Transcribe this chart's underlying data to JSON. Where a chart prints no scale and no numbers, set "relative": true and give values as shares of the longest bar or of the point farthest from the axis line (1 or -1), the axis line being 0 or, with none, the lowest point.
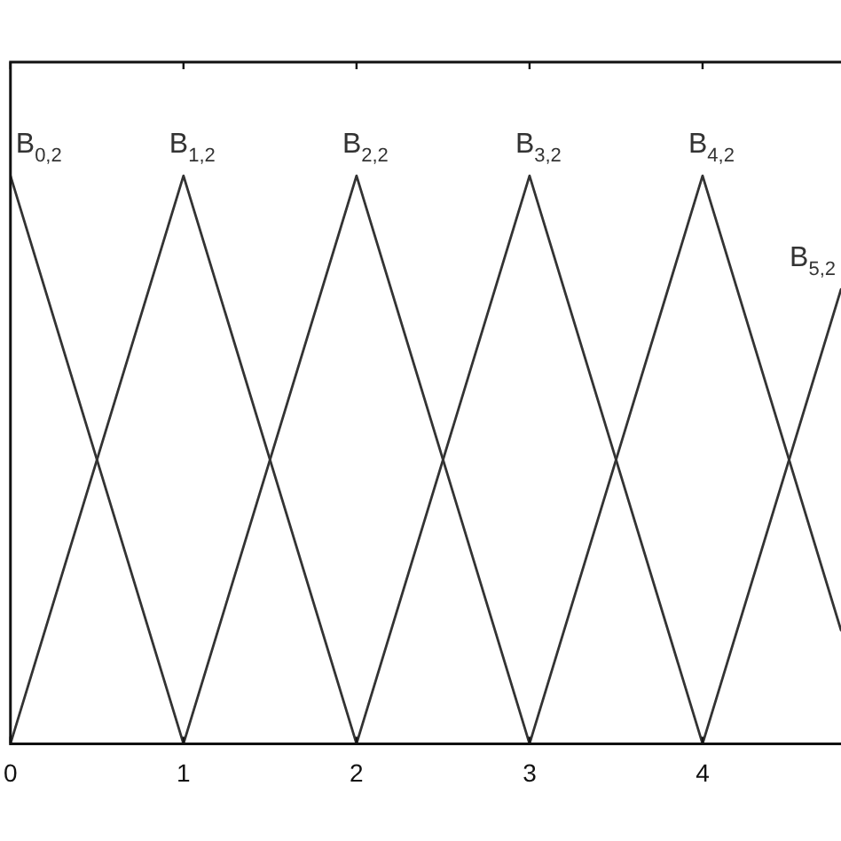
{
  "chart_data": {
    "type": "line",
    "relative": true,
    "xlim": [
      0,
      4.8
    ],
    "xticks": [
      0,
      1,
      2,
      3,
      4
    ],
    "tick_labels": "x",
    "series": [
      {
        "name": "B$_{0,2}$",
        "color": "#333333",
        "x": [
          0,
          1
        ],
        "values": [
          1,
          0
        ]
      },
      {
        "name": "B$_{1,2}$",
        "color": "#333333",
        "x": [
          0,
          1,
          2
        ],
        "values": [
          0,
          1,
          0
        ]
      },
      {
        "name": "B$_{2,2}$",
        "color": "#333333",
        "x": [
          1,
          2,
          3
        ],
        "values": [
          0,
          1,
          0
        ]
      },
      {
        "name": "B$_{3,2}$",
        "color": "#333333",
        "x": [
          2,
          3,
          4
        ],
        "values": [
          0,
          1,
          0
        ]
      },
      {
        "name": "B$_{4,2}$",
        "color": "#333333",
        "x": [
          3,
          4,
          4.8
        ],
        "values": [
          0,
          1,
          0.2
        ]
      },
      {
        "name": "B$_{5,2}$",
        "color": "#333333",
        "x": [
          4,
          4.8
        ],
        "values": [
          0,
          0.8
        ]
      }
    ]
  }
}
